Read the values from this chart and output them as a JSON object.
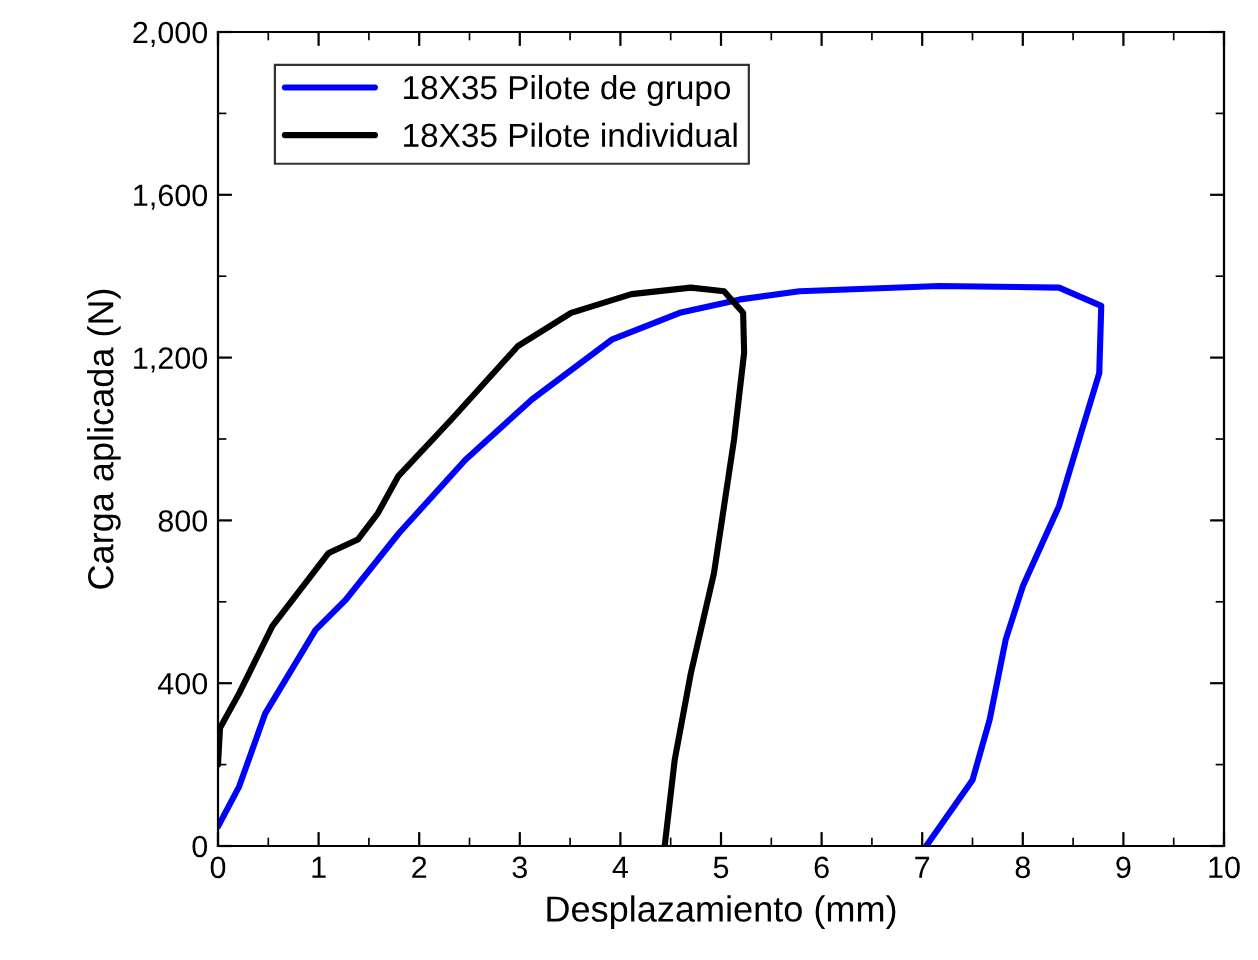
{
  "chart_data": {
    "type": "line",
    "xlabel": "Desplazamiento (mm)",
    "ylabel": "Carga aplicada (N)",
    "xlim": [
      0,
      10
    ],
    "ylim": [
      0,
      2000
    ],
    "xticks": [
      0,
      1,
      2,
      3,
      4,
      5,
      6,
      7,
      8,
      9,
      10
    ],
    "yticks": [
      0,
      400,
      800,
      {
        "value": 1200,
        "label": "1,200"
      },
      {
        "value": 1600,
        "label": "1,600"
      },
      {
        "value": 2000,
        "label": "2,000"
      }
    ],
    "grid": false,
    "legend": "top left",
    "marker": "none",
    "line_style": "solid",
    "series": [
      {
        "name": "18X35 Pilote de grupo",
        "color": "#0000ff",
        "x": [
          0,
          0.21,
          0.47,
          0.97,
          1.27,
          1.8,
          2.46,
          3.12,
          3.92,
          4.59,
          5.19,
          5.78,
          7.17,
          8.36,
          8.78,
          8.76,
          8.56,
          8.36,
          8.0,
          7.83,
          7.67,
          7.5,
          7.04
        ],
        "values": [
          48,
          146,
          326,
          531,
          605,
          769,
          949,
          1097,
          1245,
          1310,
          1343,
          1363,
          1376,
          1372,
          1327,
          1162,
          999,
          835,
          638,
          507,
          310,
          162,
          0
        ]
      },
      {
        "name": "18X35 Pilote individual",
        "color": "#000000",
        "x": [
          0,
          0.02,
          0.21,
          0.54,
          1.1,
          1.39,
          1.59,
          1.79,
          2.32,
          2.98,
          3.51,
          4.11,
          4.7,
          5.03,
          5.22,
          5.23,
          5.13,
          4.93,
          4.7,
          4.54,
          4.44
        ],
        "values": [
          200,
          290,
          375,
          540,
          720,
          753,
          818,
          908,
          1048,
          1228,
          1310,
          1356,
          1372,
          1363,
          1310,
          1212,
          999,
          670,
          424,
          212,
          0
        ]
      }
    ]
  }
}
